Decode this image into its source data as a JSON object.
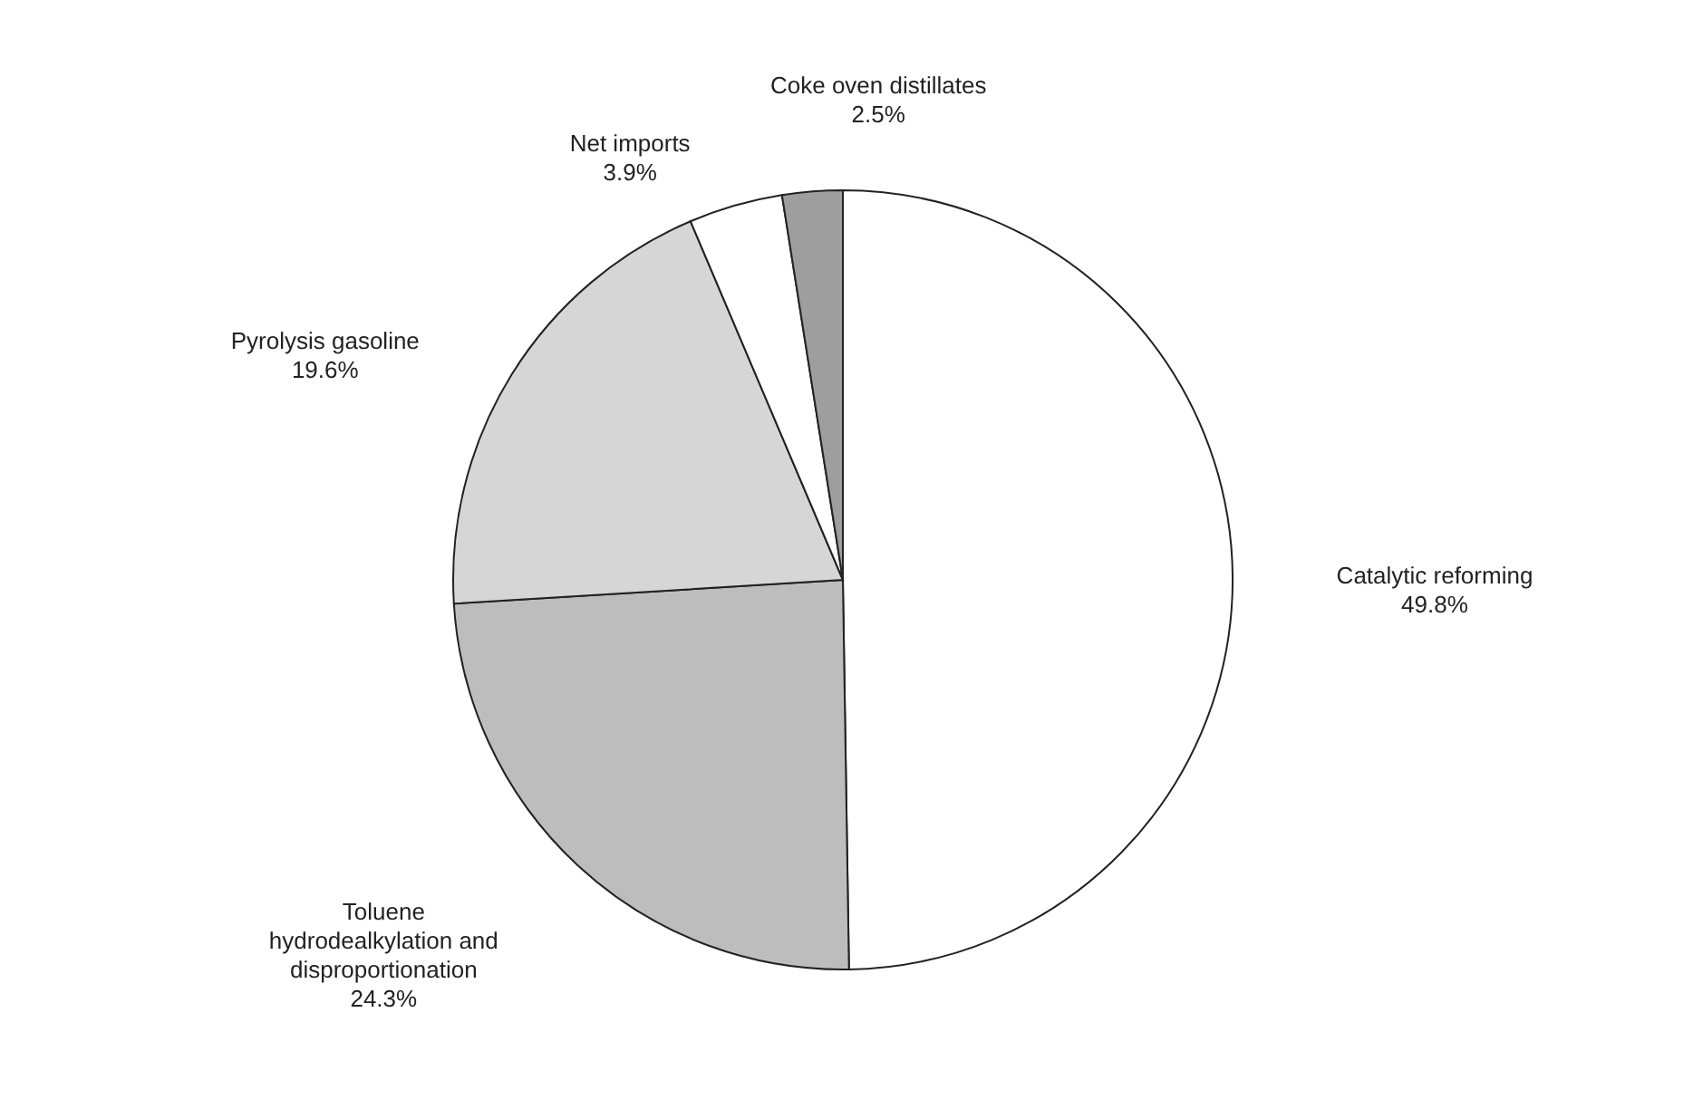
{
  "chart_data": {
    "type": "pie",
    "categories": [
      "Catalytic reforming",
      "Toluene hydrodealkylation and disproportionation",
      "Pyrolysis gasoline",
      "Net imports",
      "Coke oven distillates"
    ],
    "values": [
      49.8,
      24.3,
      19.6,
      3.9,
      2.5
    ],
    "value_labels": [
      "49.8%",
      "24.3%",
      "19.6%",
      "3.9%",
      "2.5%"
    ],
    "colors": [
      "#ffffff",
      "#bdbdbd",
      "#d6d6d6",
      "#ffffff",
      "#9e9e9e"
    ]
  }
}
